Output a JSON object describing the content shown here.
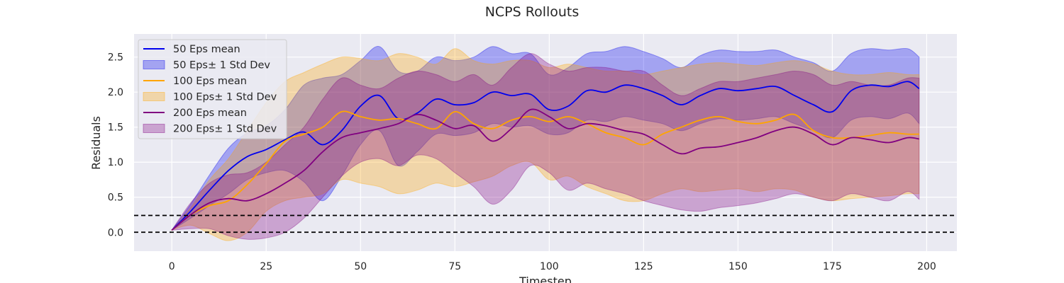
{
  "chart_data": {
    "type": "line",
    "title": "NCPS Rollouts",
    "xlabel": "Timestep",
    "ylabel": "Residuals",
    "xlim": [
      -10,
      208
    ],
    "ylim": [
      -0.27,
      2.83
    ],
    "x_ticks": [
      0,
      25,
      50,
      75,
      100,
      125,
      150,
      175,
      200
    ],
    "y_ticks": [
      0.0,
      0.5,
      1.0,
      1.5,
      2.0,
      2.5
    ],
    "x_tick_labels": [
      "0",
      "25",
      "50",
      "75",
      "100",
      "125",
      "150",
      "175",
      "200"
    ],
    "y_tick_labels": [
      "0.0",
      "0.5",
      "1.0",
      "1.5",
      "2.0",
      "2.5"
    ],
    "grid": true,
    "legend_position": "upper-left",
    "background": "#eaeaf2",
    "reference_lines": [
      {
        "y": 0.24,
        "style": "dashed",
        "color": "#000000"
      },
      {
        "y": 0.0,
        "style": "dashed",
        "color": "#000000"
      }
    ],
    "series": [
      {
        "name": "50 Eps mean",
        "band_name": "50 Eps± 1 Std Dev",
        "color": "#0000ee",
        "x": [
          0,
          5,
          10,
          15,
          20,
          25,
          30,
          35,
          40,
          45,
          50,
          55,
          60,
          65,
          70,
          75,
          80,
          85,
          90,
          95,
          100,
          105,
          110,
          115,
          120,
          125,
          130,
          135,
          140,
          145,
          150,
          155,
          160,
          165,
          170,
          175,
          180,
          185,
          190,
          195,
          198
        ],
        "mean": [
          0.03,
          0.3,
          0.6,
          0.88,
          1.08,
          1.18,
          1.32,
          1.43,
          1.25,
          1.45,
          1.8,
          1.95,
          1.62,
          1.7,
          1.9,
          1.82,
          1.85,
          2.0,
          1.95,
          1.97,
          1.75,
          1.8,
          2.02,
          2.0,
          2.1,
          2.05,
          1.95,
          1.82,
          1.95,
          2.05,
          2.02,
          2.05,
          2.08,
          1.95,
          1.82,
          1.72,
          2.02,
          2.1,
          2.08,
          2.15,
          2.05
        ],
        "lower": [
          0.03,
          0.2,
          0.38,
          0.55,
          0.75,
          0.85,
          0.88,
          0.72,
          0.45,
          0.8,
          1.25,
          1.45,
          0.95,
          1.15,
          1.4,
          1.38,
          1.42,
          1.55,
          1.5,
          1.52,
          1.4,
          1.42,
          1.6,
          1.58,
          1.65,
          1.6,
          1.55,
          1.45,
          1.55,
          1.62,
          1.6,
          1.62,
          1.65,
          1.55,
          1.45,
          1.35,
          1.6,
          1.65,
          1.62,
          1.7,
          1.55
        ],
        "upper": [
          0.03,
          0.4,
          0.82,
          1.2,
          1.42,
          1.52,
          1.75,
          2.1,
          2.2,
          2.25,
          2.45,
          2.65,
          2.3,
          2.3,
          2.5,
          2.45,
          2.5,
          2.65,
          2.55,
          2.55,
          2.25,
          2.35,
          2.55,
          2.58,
          2.65,
          2.58,
          2.48,
          2.35,
          2.52,
          2.6,
          2.58,
          2.58,
          2.6,
          2.5,
          2.42,
          2.3,
          2.55,
          2.62,
          2.6,
          2.62,
          2.5
        ]
      },
      {
        "name": "100 Eps mean",
        "band_name": "100 Eps± 1 Std Dev",
        "color": "#ffa500",
        "x": [
          0,
          5,
          10,
          15,
          20,
          25,
          30,
          35,
          40,
          45,
          50,
          55,
          60,
          65,
          70,
          75,
          80,
          85,
          90,
          95,
          100,
          105,
          110,
          115,
          120,
          125,
          130,
          135,
          140,
          145,
          150,
          155,
          160,
          165,
          170,
          175,
          180,
          185,
          190,
          195,
          198
        ],
        "mean": [
          0.03,
          0.25,
          0.38,
          0.45,
          0.68,
          0.98,
          1.3,
          1.4,
          1.5,
          1.72,
          1.65,
          1.6,
          1.62,
          1.55,
          1.48,
          1.72,
          1.55,
          1.48,
          1.6,
          1.65,
          1.58,
          1.65,
          1.55,
          1.42,
          1.35,
          1.25,
          1.4,
          1.5,
          1.6,
          1.65,
          1.58,
          1.55,
          1.6,
          1.68,
          1.45,
          1.35,
          1.35,
          1.38,
          1.42,
          1.4,
          1.4
        ],
        "lower": [
          0.03,
          0.1,
          -0.02,
          -0.12,
          0.0,
          0.3,
          0.45,
          0.5,
          0.55,
          0.75,
          0.7,
          0.65,
          0.55,
          0.6,
          0.7,
          0.65,
          0.72,
          0.8,
          0.95,
          1.0,
          0.75,
          0.8,
          0.65,
          0.55,
          0.45,
          0.45,
          0.55,
          0.62,
          0.58,
          0.6,
          0.62,
          0.58,
          0.62,
          0.6,
          0.5,
          0.45,
          0.48,
          0.5,
          0.52,
          0.55,
          0.55
        ],
        "upper": [
          0.03,
          0.35,
          0.75,
          1.05,
          1.45,
          1.85,
          2.15,
          2.28,
          2.4,
          2.5,
          2.48,
          2.45,
          2.55,
          2.5,
          2.4,
          2.62,
          2.45,
          2.4,
          2.45,
          2.45,
          2.35,
          2.4,
          2.35,
          2.3,
          2.3,
          2.25,
          2.3,
          2.35,
          2.4,
          2.42,
          2.4,
          2.38,
          2.42,
          2.45,
          2.4,
          2.3,
          2.25,
          2.25,
          2.28,
          2.25,
          2.25
        ]
      },
      {
        "name": "200 Eps mean",
        "band_name": "200 Eps± 1 Std Dev",
        "color": "#800080",
        "x": [
          0,
          5,
          10,
          15,
          20,
          25,
          30,
          35,
          40,
          45,
          50,
          55,
          60,
          65,
          70,
          75,
          80,
          85,
          90,
          95,
          100,
          105,
          110,
          115,
          120,
          125,
          130,
          135,
          140,
          145,
          150,
          155,
          160,
          165,
          170,
          175,
          180,
          185,
          190,
          195,
          198
        ],
        "mean": [
          0.03,
          0.25,
          0.42,
          0.48,
          0.45,
          0.55,
          0.7,
          0.88,
          1.15,
          1.35,
          1.42,
          1.48,
          1.55,
          1.68,
          1.6,
          1.48,
          1.52,
          1.3,
          1.48,
          1.75,
          1.65,
          1.48,
          1.55,
          1.52,
          1.45,
          1.4,
          1.25,
          1.12,
          1.2,
          1.22,
          1.28,
          1.35,
          1.45,
          1.5,
          1.4,
          1.25,
          1.35,
          1.32,
          1.28,
          1.35,
          1.33
        ],
        "lower": [
          0.03,
          0.05,
          0.05,
          -0.05,
          -0.1,
          -0.08,
          0.0,
          0.2,
          0.5,
          0.8,
          1.0,
          1.05,
          0.95,
          1.1,
          1.05,
          0.85,
          0.65,
          0.4,
          0.6,
          0.95,
          0.85,
          0.6,
          0.7,
          0.62,
          0.55,
          0.45,
          0.38,
          0.32,
          0.3,
          0.35,
          0.38,
          0.42,
          0.48,
          0.55,
          0.5,
          0.45,
          0.55,
          0.5,
          0.45,
          0.58,
          0.47
        ],
        "upper": [
          0.03,
          0.42,
          0.7,
          0.82,
          0.85,
          1.0,
          1.25,
          1.5,
          1.9,
          2.2,
          2.1,
          2.05,
          2.2,
          2.3,
          2.25,
          2.15,
          2.25,
          2.1,
          2.35,
          2.55,
          2.4,
          2.3,
          2.35,
          2.35,
          2.3,
          2.3,
          2.1,
          1.95,
          2.05,
          2.15,
          2.15,
          2.2,
          2.25,
          2.3,
          2.25,
          2.1,
          2.15,
          2.1,
          2.1,
          2.2,
          2.2
        ]
      }
    ]
  }
}
